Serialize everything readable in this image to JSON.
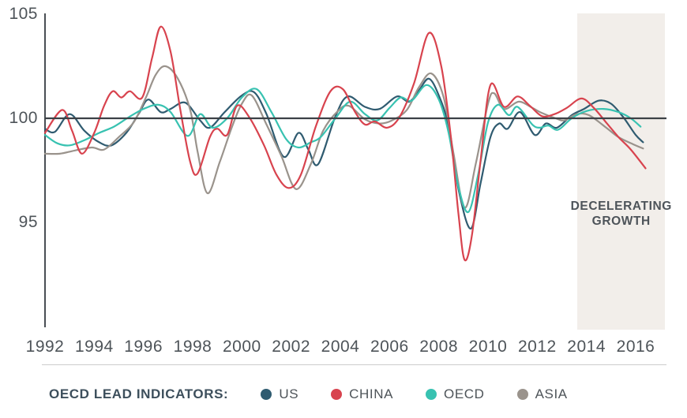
{
  "legend": {
    "title": "OECD LEAD INDICATORS:",
    "items": [
      {
        "label": "US",
        "color": "#2f5b70"
      },
      {
        "label": "CHINA",
        "color": "#d8434e"
      },
      {
        "label": "OECD",
        "color": "#38c2b1"
      },
      {
        "label": "ASIA",
        "color": "#9a938c"
      }
    ]
  },
  "annotation": {
    "label": "DECELERATING GROWTH"
  },
  "axes": {
    "y_tick_labels": [
      "105",
      "100",
      "95"
    ],
    "x_tick_labels": [
      "1992",
      "1994",
      "1996",
      "1998",
      "2000",
      "2002",
      "2004",
      "2006",
      "2008",
      "2010",
      "2012",
      "2014",
      "2016"
    ]
  },
  "colors": {
    "axis_line": "#4a4f54",
    "baseline": "#3c4146",
    "tick_text": "#4e5459",
    "annotation_text": "#4d5359",
    "legend_title_text": "#3d4f5c",
    "shade_fill": "#f2eeea",
    "divider": "#cccccc",
    "background": "#ffffff"
  },
  "chart_data": {
    "type": "line",
    "title": "",
    "xlabel": "",
    "ylabel": "",
    "x_range_visible": [
      1992,
      2017.25
    ],
    "y_range_visible": [
      90,
      105
    ],
    "baseline_value": 100,
    "y_ticks": [
      105,
      100,
      95
    ],
    "x_ticks": [
      1992,
      1994,
      1996,
      1998,
      2000,
      2002,
      2004,
      2006,
      2008,
      2010,
      2012,
      2014,
      2016
    ],
    "grid": false,
    "legend_position": "bottom",
    "shaded_region": {
      "label": "DECELERATING GROWTH",
      "x_start": 2013.63,
      "x_end": 2017.2
    },
    "series": [
      {
        "name": "US",
        "color": "#2f5b70",
        "points": [
          [
            1992,
            99.5
          ],
          [
            1992.4,
            99.35
          ],
          [
            1993,
            100.2
          ],
          [
            1993.6,
            99.4
          ],
          [
            1994.2,
            98.85
          ],
          [
            1994.7,
            98.7
          ],
          [
            1995.3,
            99.3
          ],
          [
            1995.8,
            100.2
          ],
          [
            1996.2,
            100.9
          ],
          [
            1996.7,
            100.3
          ],
          [
            1997.1,
            100.45
          ],
          [
            1997.7,
            100.75
          ],
          [
            1998.3,
            99.9
          ],
          [
            1998.7,
            99.55
          ],
          [
            1999.3,
            100.3
          ],
          [
            2000,
            101.1
          ],
          [
            2000.5,
            101.25
          ],
          [
            2001,
            100.2
          ],
          [
            2001.7,
            98.15
          ],
          [
            2002.3,
            99.3
          ],
          [
            2002.7,
            98.5
          ],
          [
            2003.1,
            97.8
          ],
          [
            2003.8,
            100.1
          ],
          [
            2004.3,
            101.05
          ],
          [
            2005,
            100.55
          ],
          [
            2005.6,
            100.45
          ],
          [
            2006.3,
            101.05
          ],
          [
            2006.8,
            100.8
          ],
          [
            2007.2,
            101.35
          ],
          [
            2007.6,
            101.9
          ],
          [
            2008,
            101.1
          ],
          [
            2008.4,
            99.6
          ],
          [
            2008.8,
            96.6
          ],
          [
            2009.3,
            94.7
          ],
          [
            2009.7,
            96.9
          ],
          [
            2010.1,
            99.1
          ],
          [
            2010.45,
            99.75
          ],
          [
            2010.8,
            99.5
          ],
          [
            2011.3,
            100.3
          ],
          [
            2011.9,
            99.2
          ],
          [
            2012.35,
            99.75
          ],
          [
            2012.8,
            99.55
          ],
          [
            2013.4,
            100.15
          ],
          [
            2013.9,
            100.45
          ],
          [
            2014.5,
            100.85
          ],
          [
            2015,
            100.7
          ],
          [
            2015.5,
            100.05
          ],
          [
            2016,
            99.2
          ],
          [
            2016.3,
            98.85
          ]
        ]
      },
      {
        "name": "CHINA",
        "color": "#d8434e",
        "points": [
          [
            1992,
            99.3
          ],
          [
            1992.7,
            100.4
          ],
          [
            1993.1,
            99.4
          ],
          [
            1993.5,
            98.3
          ],
          [
            1994,
            99.3
          ],
          [
            1994.4,
            100.6
          ],
          [
            1994.75,
            101.3
          ],
          [
            1995.1,
            101
          ],
          [
            1995.45,
            101.3
          ],
          [
            1995.95,
            101
          ],
          [
            1996.35,
            102.9
          ],
          [
            1996.7,
            104.4
          ],
          [
            1997.1,
            103.2
          ],
          [
            1997.5,
            100.4
          ],
          [
            1997.9,
            97.9
          ],
          [
            1998.2,
            97.35
          ],
          [
            1998.7,
            99.1
          ],
          [
            1999,
            99.5
          ],
          [
            1999.4,
            99.2
          ],
          [
            1999.8,
            100.6
          ],
          [
            2000.3,
            100.05
          ],
          [
            2000.9,
            98.7
          ],
          [
            2001.4,
            97.3
          ],
          [
            2001.9,
            96.65
          ],
          [
            2002.4,
            97.3
          ],
          [
            2003,
            99.6
          ],
          [
            2003.6,
            101.3
          ],
          [
            2004.1,
            101.4
          ],
          [
            2004.6,
            100.3
          ],
          [
            2005,
            99.7
          ],
          [
            2005.4,
            99.85
          ],
          [
            2005.9,
            99.55
          ],
          [
            2006.4,
            100.05
          ],
          [
            2007,
            101.7
          ],
          [
            2007.6,
            104.1
          ],
          [
            2008.1,
            102.5
          ],
          [
            2008.5,
            99
          ],
          [
            2008.8,
            95.4
          ],
          [
            2009.05,
            93.2
          ],
          [
            2009.35,
            94.4
          ],
          [
            2009.7,
            98
          ],
          [
            2010.1,
            101.6
          ],
          [
            2010.65,
            100.55
          ],
          [
            2011.2,
            101.05
          ],
          [
            2011.7,
            100.6
          ],
          [
            2012.2,
            100.1
          ],
          [
            2012.7,
            100.2
          ],
          [
            2013.2,
            100.5
          ],
          [
            2013.8,
            100.95
          ],
          [
            2014.3,
            100.5
          ],
          [
            2014.8,
            99.8
          ],
          [
            2015.3,
            99.1
          ],
          [
            2015.8,
            98.5
          ],
          [
            2016.4,
            97.6
          ]
        ]
      },
      {
        "name": "OECD",
        "color": "#38c2b1",
        "points": [
          [
            1992,
            99.2
          ],
          [
            1992.5,
            98.8
          ],
          [
            1993,
            98.7
          ],
          [
            1993.6,
            98.95
          ],
          [
            1994.2,
            99.3
          ],
          [
            1994.8,
            99.6
          ],
          [
            1995.4,
            100.05
          ],
          [
            1996,
            100.45
          ],
          [
            1996.6,
            100.65
          ],
          [
            1997.1,
            100.3
          ],
          [
            1997.8,
            99.15
          ],
          [
            1998.3,
            100.2
          ],
          [
            1998.8,
            99.55
          ],
          [
            1999.4,
            100
          ],
          [
            2000,
            101
          ],
          [
            2000.6,
            101.4
          ],
          [
            2001.2,
            100.3
          ],
          [
            2001.8,
            99
          ],
          [
            2002.3,
            98.6
          ],
          [
            2002.8,
            98.85
          ],
          [
            2003.2,
            99.1
          ],
          [
            2003.8,
            100
          ],
          [
            2004.4,
            100.8
          ],
          [
            2005,
            100.2
          ],
          [
            2005.5,
            99.9
          ],
          [
            2006,
            100.5
          ],
          [
            2006.45,
            101
          ],
          [
            2006.9,
            100.85
          ],
          [
            2007.5,
            101.6
          ],
          [
            2008,
            100.9
          ],
          [
            2008.4,
            99.3
          ],
          [
            2008.8,
            96.7
          ],
          [
            2009.2,
            95.5
          ],
          [
            2009.6,
            97.3
          ],
          [
            2010,
            99.8
          ],
          [
            2010.4,
            100.65
          ],
          [
            2010.85,
            100.15
          ],
          [
            2011.2,
            100.55
          ],
          [
            2011.8,
            99.7
          ],
          [
            2012.1,
            99.55
          ],
          [
            2012.45,
            99.65
          ],
          [
            2012.85,
            99.45
          ],
          [
            2013.4,
            100
          ],
          [
            2014,
            100.35
          ],
          [
            2014.7,
            100.45
          ],
          [
            2015.3,
            100.3
          ],
          [
            2015.8,
            100
          ],
          [
            2016.2,
            99.6
          ]
        ]
      },
      {
        "name": "ASIA",
        "color": "#9a938c",
        "points": [
          [
            1992,
            98.3
          ],
          [
            1992.6,
            98.3
          ],
          [
            1993.2,
            98.45
          ],
          [
            1993.9,
            98.6
          ],
          [
            1994.4,
            98.5
          ],
          [
            1995,
            99.1
          ],
          [
            1995.6,
            99.8
          ],
          [
            1996.1,
            101
          ],
          [
            1996.5,
            102.1
          ],
          [
            1996.9,
            102.5
          ],
          [
            1997.4,
            101.9
          ],
          [
            1997.9,
            100.4
          ],
          [
            1998.2,
            98.4
          ],
          [
            1998.6,
            96.4
          ],
          [
            1999.1,
            97.9
          ],
          [
            1999.6,
            99.6
          ],
          [
            2000,
            100.7
          ],
          [
            2000.4,
            101.1
          ],
          [
            2001,
            99.7
          ],
          [
            2001.6,
            98.2
          ],
          [
            2002.2,
            96.6
          ],
          [
            2002.8,
            97.8
          ],
          [
            2003.3,
            99.4
          ],
          [
            2003.9,
            100.35
          ],
          [
            2004.35,
            100.6
          ],
          [
            2005,
            99.95
          ],
          [
            2005.6,
            99.75
          ],
          [
            2006.1,
            99.9
          ],
          [
            2006.7,
            100.4
          ],
          [
            2007.2,
            101.5
          ],
          [
            2007.7,
            102.15
          ],
          [
            2008.2,
            101
          ],
          [
            2008.6,
            98.3
          ],
          [
            2009.05,
            95.7
          ],
          [
            2009.5,
            97.8
          ],
          [
            2010,
            100.7
          ],
          [
            2010.25,
            101.2
          ],
          [
            2010.65,
            100.45
          ],
          [
            2011.25,
            100.8
          ],
          [
            2011.8,
            100.5
          ],
          [
            2012.2,
            100.25
          ],
          [
            2012.75,
            100
          ],
          [
            2013.1,
            99.9
          ],
          [
            2013.6,
            100.2
          ],
          [
            2014.1,
            100.15
          ],
          [
            2014.75,
            99.6
          ],
          [
            2015.3,
            99.1
          ],
          [
            2015.9,
            98.75
          ],
          [
            2016.3,
            98.55
          ]
        ]
      }
    ]
  }
}
